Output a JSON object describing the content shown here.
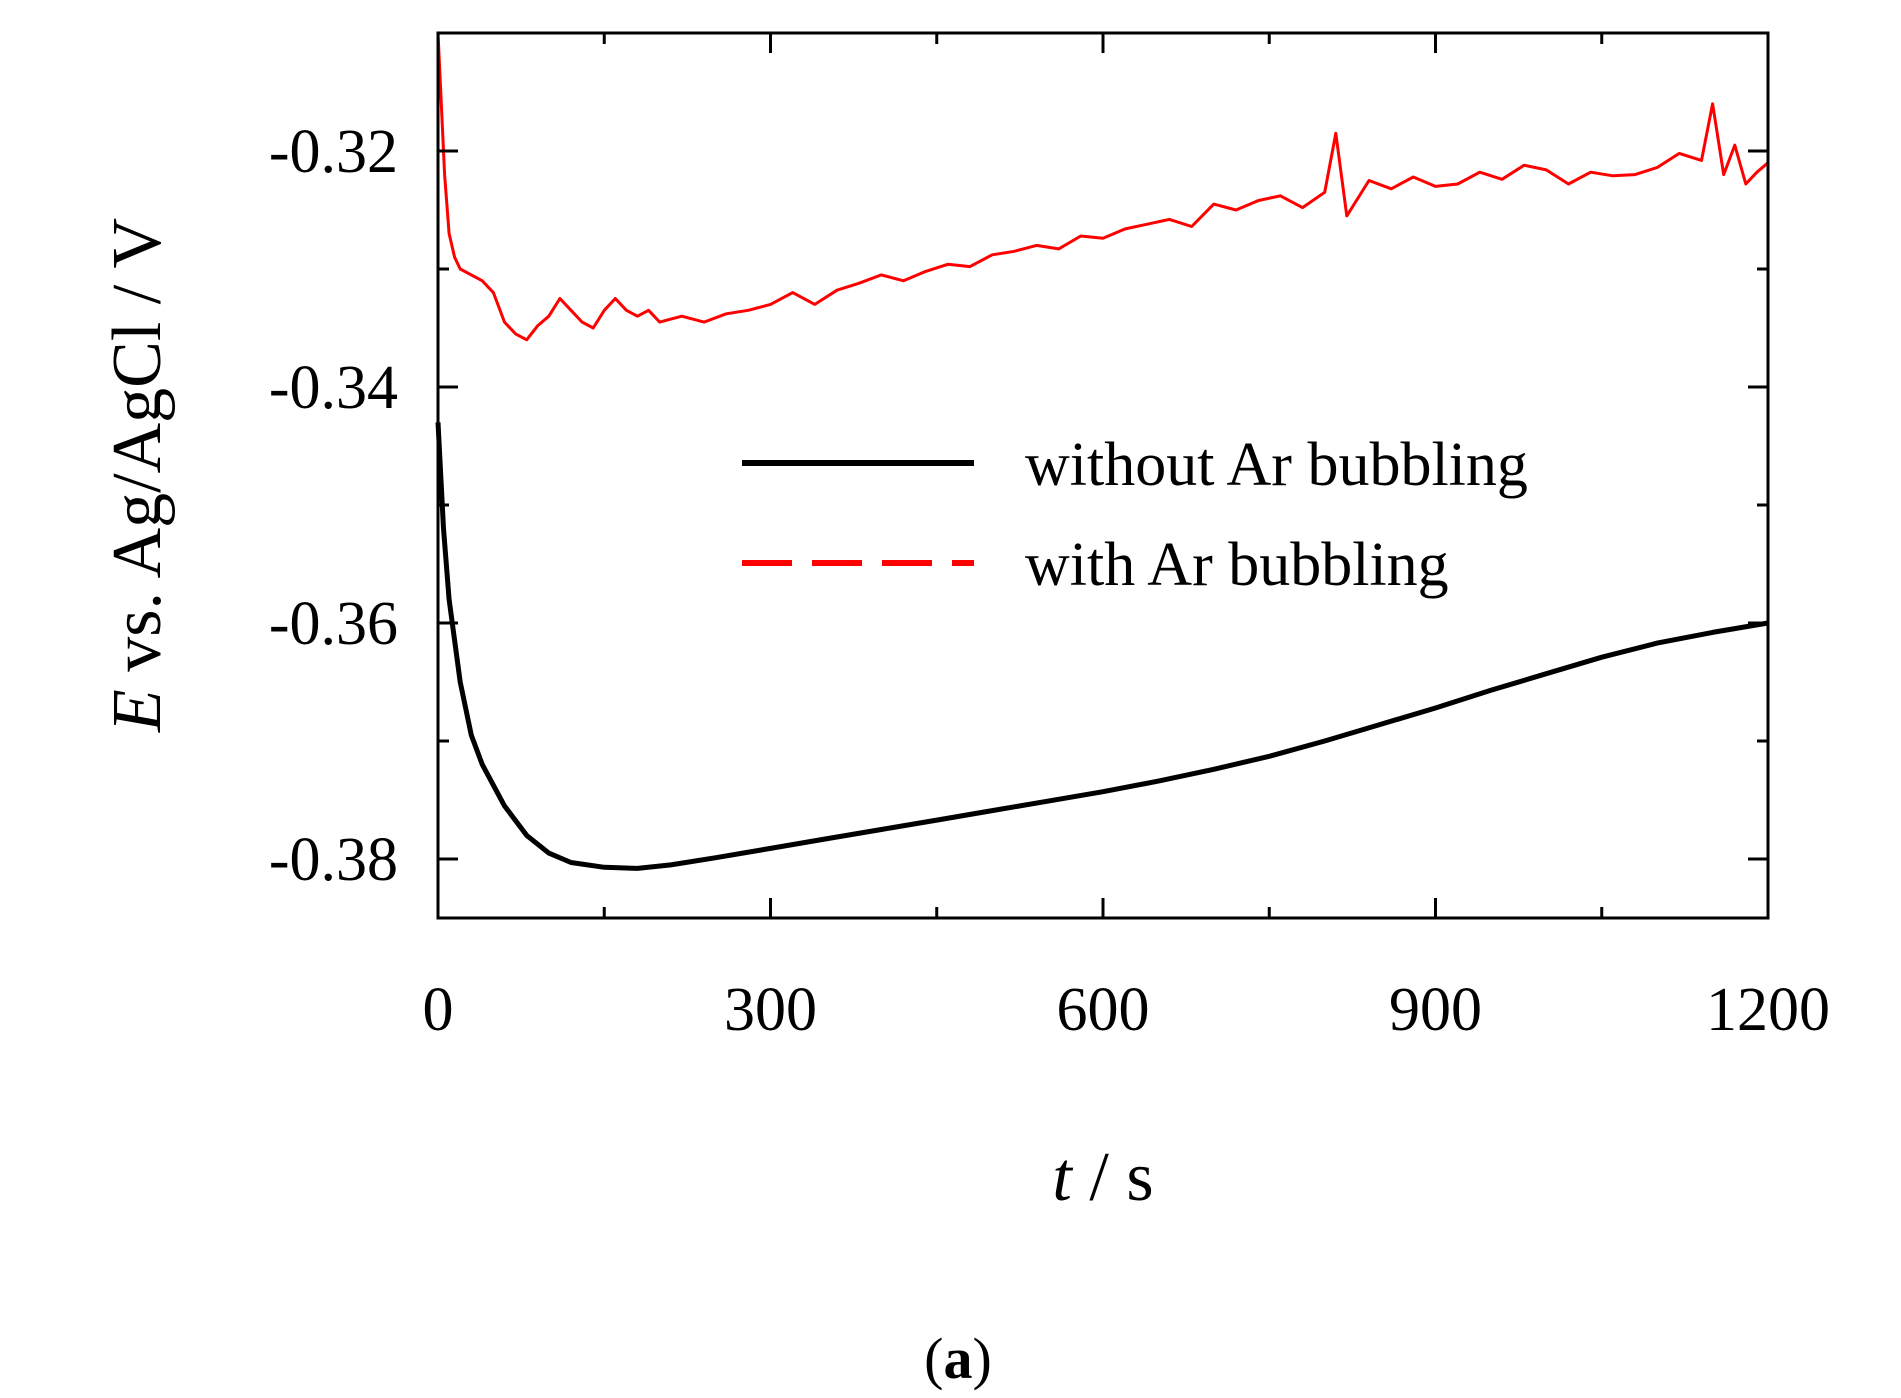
{
  "chart_data": {
    "type": "line",
    "xlabel": {
      "var": "t",
      "unit": " / s"
    },
    "ylabel": {
      "var": "E",
      "rest": " vs. Ag/AgCl / V"
    },
    "xlim": [
      0,
      1200
    ],
    "ylim": [
      -0.385,
      -0.31
    ],
    "x_ticks": [
      0,
      300,
      600,
      900,
      1200
    ],
    "x_minor_ticks": [
      150,
      450,
      750,
      1050
    ],
    "y_ticks": [
      -0.32,
      -0.34,
      -0.36,
      -0.38
    ],
    "y_tick_labels": [
      "-0.32",
      "-0.34",
      "-0.36",
      "-0.38"
    ],
    "y_minor_ticks": [
      -0.31,
      -0.33,
      -0.35,
      -0.37
    ],
    "grid": false,
    "legend_position": "upper-right",
    "panel_label": {
      "open": "(",
      "letter": "a",
      "close": ")"
    },
    "series": [
      {
        "name": "without Ar bubbling",
        "color": "#000000",
        "style": "solid",
        "x": [
          0,
          5,
          10,
          20,
          30,
          40,
          60,
          80,
          100,
          120,
          150,
          180,
          210,
          250,
          300,
          350,
          400,
          450,
          500,
          550,
          600,
          650,
          700,
          750,
          800,
          850,
          900,
          950,
          1000,
          1050,
          1100,
          1150,
          1200
        ],
        "y": [
          -0.343,
          -0.352,
          -0.358,
          -0.365,
          -0.3695,
          -0.372,
          -0.3755,
          -0.378,
          -0.3795,
          -0.3803,
          -0.3807,
          -0.3808,
          -0.3805,
          -0.3799,
          -0.3791,
          -0.3783,
          -0.3775,
          -0.3767,
          -0.3759,
          -0.3751,
          -0.3743,
          -0.3734,
          -0.3724,
          -0.3713,
          -0.37,
          -0.3686,
          -0.3672,
          -0.3657,
          -0.3643,
          -0.3629,
          -0.3617,
          -0.3608,
          -0.36
        ]
      },
      {
        "name": "with Ar bubbling",
        "color": "#ff0000",
        "style": "dashed",
        "x": [
          0,
          3,
          6,
          10,
          15,
          20,
          30,
          40,
          50,
          60,
          70,
          80,
          90,
          100,
          110,
          120,
          130,
          140,
          150,
          160,
          170,
          180,
          190,
          200,
          220,
          240,
          260,
          280,
          300,
          320,
          340,
          360,
          380,
          400,
          420,
          440,
          460,
          480,
          500,
          520,
          540,
          560,
          580,
          600,
          620,
          640,
          660,
          680,
          700,
          720,
          740,
          760,
          780,
          800,
          810,
          820,
          840,
          860,
          880,
          900,
          920,
          940,
          960,
          980,
          1000,
          1020,
          1040,
          1060,
          1080,
          1100,
          1120,
          1140,
          1150,
          1160,
          1170,
          1180,
          1190,
          1200
        ],
        "y": [
          -0.31,
          -0.316,
          -0.322,
          -0.327,
          -0.329,
          -0.33,
          -0.3305,
          -0.331,
          -0.332,
          -0.3345,
          -0.3355,
          -0.336,
          -0.3348,
          -0.334,
          -0.3325,
          -0.3335,
          -0.3345,
          -0.335,
          -0.3335,
          -0.3325,
          -0.3335,
          -0.334,
          -0.3335,
          -0.3345,
          -0.334,
          -0.3345,
          -0.3338,
          -0.3335,
          -0.333,
          -0.332,
          -0.333,
          -0.3318,
          -0.3312,
          -0.3305,
          -0.331,
          -0.3302,
          -0.3296,
          -0.3298,
          -0.3288,
          -0.3285,
          -0.328,
          -0.3283,
          -0.3272,
          -0.3274,
          -0.3266,
          -0.3262,
          -0.3258,
          -0.3264,
          -0.3245,
          -0.325,
          -0.3242,
          -0.3238,
          -0.3248,
          -0.3235,
          -0.3185,
          -0.3255,
          -0.3225,
          -0.3232,
          -0.3222,
          -0.323,
          -0.3228,
          -0.3218,
          -0.3224,
          -0.3212,
          -0.3216,
          -0.3228,
          -0.3218,
          -0.3221,
          -0.322,
          -0.3214,
          -0.3202,
          -0.3208,
          -0.316,
          -0.322,
          -0.3195,
          -0.3228,
          -0.3218,
          -0.321
        ]
      }
    ]
  }
}
